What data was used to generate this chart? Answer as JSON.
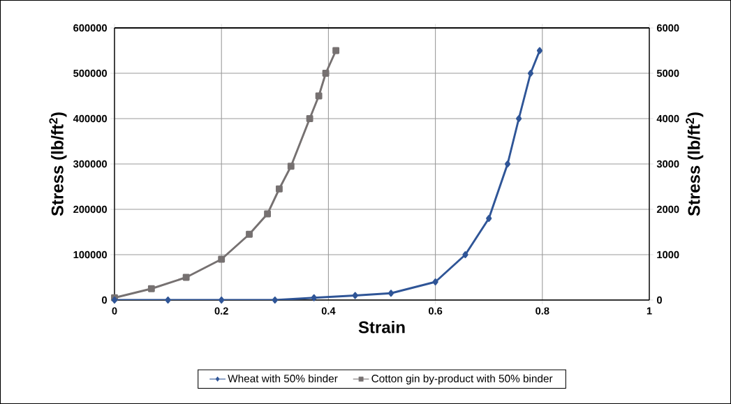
{
  "chart_data": {
    "type": "line",
    "xlabel": "Strain",
    "ylabel": "Stress (lb/ft$^{2}$)",
    "y2label": "Stress (lb/ft$^{2}$)",
    "xlim": [
      0,
      1
    ],
    "xticks": [
      0,
      0.2,
      0.4,
      0.6,
      0.8,
      1
    ],
    "ylim": [
      0,
      600000
    ],
    "yticks": [
      0,
      100000,
      200000,
      300000,
      400000,
      500000,
      600000
    ],
    "y2lim": [
      0,
      6000
    ],
    "y2ticks": [
      0,
      1000,
      2000,
      3000,
      4000,
      5000,
      6000
    ],
    "grid": true,
    "legend": "bottom",
    "series": [
      {
        "name": "Wheat with 50% binder",
        "color": "#2f5597",
        "axis": "y2",
        "marker": "diamond",
        "x": [
          0,
          0.1,
          0.2,
          0.3,
          0.373,
          0.45,
          0.517,
          0.6,
          0.656,
          0.7,
          0.735,
          0.756,
          0.778,
          0.795
        ],
        "values": [
          0,
          0,
          0,
          0,
          50,
          100,
          150,
          400,
          1000,
          1800,
          3000,
          4000,
          5000,
          5500
        ]
      },
      {
        "name": "Cotton gin by-product with 50% binder",
        "color": "#767171",
        "marker": "square",
        "x": [
          0,
          0.069,
          0.134,
          0.2,
          0.252,
          0.286,
          0.308,
          0.33,
          0.365,
          0.382,
          0.395,
          0.414
        ],
        "values": [
          5000,
          25000,
          50000,
          90000,
          145000,
          190000,
          245000,
          295000,
          400000,
          450000,
          500000,
          550000
        ]
      }
    ]
  }
}
